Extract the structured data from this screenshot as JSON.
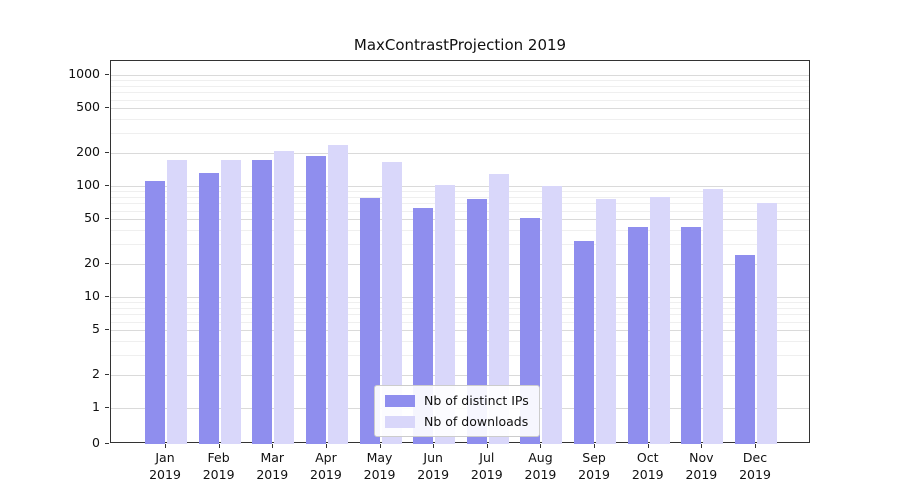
{
  "chart_data": {
    "type": "bar",
    "title": "MaxContrastProjection 2019",
    "year": "2019",
    "categories": [
      "Jan",
      "Feb",
      "Mar",
      "Apr",
      "May",
      "Jun",
      "Jul",
      "Aug",
      "Sep",
      "Oct",
      "Nov",
      "Dec"
    ],
    "series": [
      {
        "name": "Nb of distinct IPs",
        "color": "#8f8eee",
        "values": [
          110,
          130,
          170,
          185,
          78,
          63,
          76,
          52,
          32,
          43,
          43,
          24
        ]
      },
      {
        "name": "Nb of downloads",
        "color": "#d9d7fa",
        "values": [
          172,
          170,
          205,
          235,
          165,
          103,
          127,
          101,
          76,
          79,
          94,
          71
        ]
      }
    ],
    "yticks": [
      0,
      1,
      2,
      5,
      10,
      20,
      50,
      100,
      200,
      500,
      1000
    ],
    "yscale": "symlog",
    "ylim": [
      0,
      1300
    ],
    "xlabel": "",
    "ylabel": "",
    "grid": "horizontal",
    "legend_position": "lower center"
  }
}
